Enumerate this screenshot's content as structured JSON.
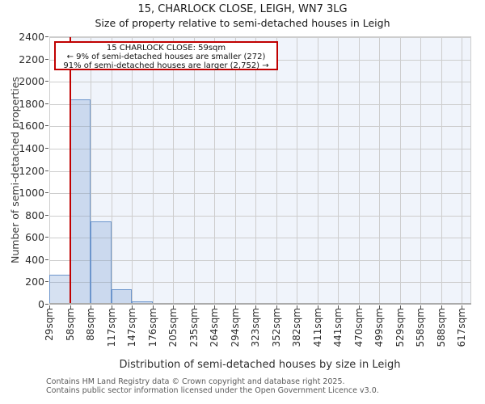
{
  "title": "15, CHARLOCK CLOSE, LEIGH, WN7 3LG",
  "subtitle": "Size of property relative to semi-detached houses in Leigh",
  "annotation": {
    "line1": "15 CHARLOCK CLOSE: 59sqm",
    "line2": "← 9% of semi-detached houses are smaller (272)",
    "line3": "91% of semi-detached houses are larger (2,752) →"
  },
  "footer": {
    "line1": "Contains HM Land Registry data © Crown copyright and database right 2025.",
    "line2": "Contains public sector information licensed under the Open Government Licence v3.0."
  },
  "chart_data": {
    "type": "bar",
    "title": "15, CHARLOCK CLOSE, LEIGH, WN7 3LG",
    "subtitle": "Size of property relative to semi-detached houses in Leigh",
    "xlabel": "Distribution of semi-detached houses by size in Leigh",
    "ylabel": "Number of semi-detached properties",
    "categories": [
      "29sqm",
      "58sqm",
      "88sqm",
      "117sqm",
      "147sqm",
      "176sqm",
      "205sqm",
      "235sqm",
      "264sqm",
      "294sqm",
      "323sqm",
      "352sqm",
      "382sqm",
      "411sqm",
      "441sqm",
      "470sqm",
      "499sqm",
      "529sqm",
      "558sqm",
      "588sqm",
      "617sqm"
    ],
    "bin_start_values": [
      29,
      58,
      88,
      117,
      147,
      176,
      205,
      235,
      264,
      294,
      323,
      352,
      382,
      411,
      441,
      470,
      499,
      529,
      558,
      588
    ],
    "values": [
      270,
      1845,
      750,
      140,
      28,
      12,
      8,
      0,
      0,
      0,
      0,
      0,
      0,
      0,
      0,
      0,
      0,
      0,
      0,
      0
    ],
    "x_axis_start": 29,
    "x_axis_end": 617,
    "ylim": [
      0,
      2400
    ],
    "yticks": [
      0,
      200,
      400,
      600,
      800,
      1000,
      1200,
      1400,
      1600,
      1800,
      2000,
      2200,
      2400
    ],
    "grid": true,
    "legend": false,
    "marker": {
      "value_sqm": 59,
      "smaller_pct": "9%",
      "smaller_count": 272,
      "larger_pct": "91%",
      "larger_count": "2,752"
    },
    "colors": {
      "marker_red": "#c00000",
      "bar_fill_rgba": "rgba(108,149,204,0.28)",
      "bar_border": "#6c95cc",
      "gridline": "#cdcdcd",
      "region_tint": "#f0f4fb",
      "axis_line": "#ababab"
    }
  }
}
